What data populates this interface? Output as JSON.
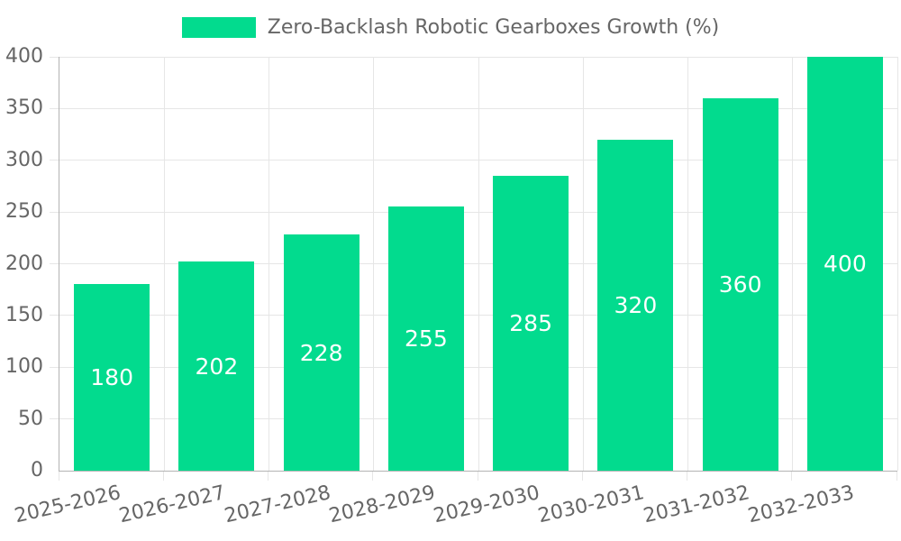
{
  "chart_data": {
    "type": "bar",
    "title": "Zero-Backlash Robotic Gearboxes Growth (%)",
    "categories": [
      "2025-2026",
      "2026-2027",
      "2027-2028",
      "2028-2029",
      "2029-2030",
      "2030-2031",
      "2031-2032",
      "2032-2033"
    ],
    "values": [
      180,
      202,
      228,
      255,
      285,
      320,
      360,
      400
    ],
    "xlabel": "",
    "ylabel": "",
    "ylim": [
      0,
      400
    ],
    "yticks": [
      0,
      50,
      100,
      150,
      200,
      250,
      300,
      350,
      400
    ],
    "grid": true,
    "legend_position": "top",
    "bar_value_labels_inside": true,
    "colors": {
      "bar": "#02DB8E",
      "bar_label": "#FFFFFF",
      "axis_text": "#666666",
      "grid": "#E6E6E6",
      "axis_line": "#B3B3B3",
      "background": "#FFFFFF"
    }
  }
}
